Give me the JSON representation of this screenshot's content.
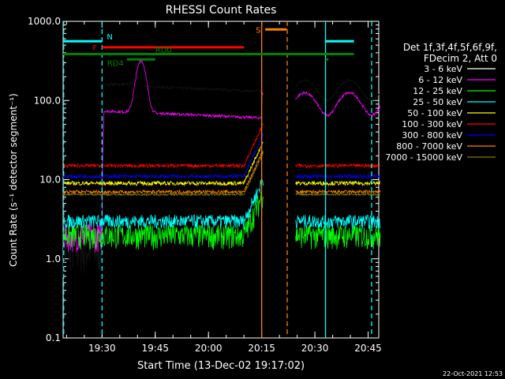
{
  "chart_data": {
    "type": "line",
    "title": "RHESSI Count Rates",
    "xlabel": "Start Time (13-Dec-02 19:17:02)",
    "ylabel": "Count Rate (s⁻¹ detector segment⁻¹)",
    "y_scale": "log",
    "ylim": [
      0.1,
      1000
    ],
    "xlim_minutes": [
      19.03,
      58.0
    ],
    "x_ticks": [
      {
        "label": "19:30",
        "m": 30
      },
      {
        "label": "19:45",
        "m": 45
      },
      {
        "label": "20:00",
        "m": 60
      },
      {
        "label": "20:15",
        "m": 75
      },
      {
        "label": "20:30",
        "m": 90
      },
      {
        "label": "20:45",
        "m": 105
      }
    ],
    "y_ticks": [
      {
        "label": "0.1",
        "v": 0.1
      },
      {
        "label": "1.0",
        "v": 1
      },
      {
        "label": "10.0",
        "v": 10
      },
      {
        "label": "100.0",
        "v": 100
      },
      {
        "label": "1000.0",
        "v": 1000
      }
    ],
    "legend_header": [
      "Det 1f,3f,4f,5f,6f,9f,",
      "FDecim 2, Att 0"
    ],
    "legend_placement": "right",
    "series": [
      {
        "name": "3 - 6 keV",
        "color": "#000000",
        "base": 1.3,
        "noise": 0.55
      },
      {
        "name": "6 - 12 keV",
        "color": "#ff00ff",
        "base": 2.0,
        "noise": 0.4
      },
      {
        "name": "12 - 25 keV",
        "color": "#00ff00",
        "base": 2.0,
        "noise": 0.35
      },
      {
        "name": "25 - 50 keV",
        "color": "#00ffff",
        "base": 3.0,
        "noise": 0.2
      },
      {
        "name": "50 - 100 keV",
        "color": "#ffff00",
        "base": 9.0,
        "noise": 0.06
      },
      {
        "name": "100 - 300 keV",
        "color": "#ff0000",
        "base": 15.0,
        "noise": 0.05
      },
      {
        "name": "300 - 800 keV",
        "color": "#0000ff",
        "base": 11.0,
        "noise": 0.05
      },
      {
        "name": "800 - 7000 keV",
        "color": "#ff8000",
        "base": 7.0,
        "noise": 0.05
      },
      {
        "name": "7000 - 15000 keV",
        "color": "#808000",
        "base": 6.5,
        "noise": 0.03
      }
    ],
    "flags": [
      {
        "label": "N",
        "color": "#00ffff",
        "segments": [
          [
            19.03,
            30.0
          ],
          [
            93.0,
            101.0
          ]
        ],
        "level": 560
      },
      {
        "label": "F",
        "color": "#ff0000",
        "segments": [
          [
            30.0,
            70.0
          ]
        ],
        "level": 470
      },
      {
        "label": "S",
        "color": "#ff8000",
        "segments": [
          [
            76.0,
            82.0
          ]
        ],
        "level": 790
      },
      {
        "label": "RD0",
        "color": "#008000",
        "segments": [
          [
            19.03,
            101.0
          ]
        ],
        "level": 385
      },
      {
        "label": "RD4",
        "color": "#008000",
        "segments": [
          [
            37.0,
            45.0
          ],
          [
            93.0,
            93.8
          ]
        ],
        "level": 330
      }
    ],
    "vertical_markers": [
      {
        "m": 19.2,
        "color": "#00ffff",
        "style": "dashed"
      },
      {
        "m": 30.0,
        "color": "#00ffff",
        "style": "dashed"
      },
      {
        "m": 75.0,
        "color": "#ff8000",
        "style": "solid"
      },
      {
        "m": 82.2,
        "color": "#ff8000",
        "style": "dashed"
      },
      {
        "m": 93.0,
        "color": "#00ffff",
        "style": "solid"
      },
      {
        "m": 106.0,
        "color": "#00ffff",
        "style": "dashed"
      }
    ],
    "timestamp": "22-Oct-2021 12:53"
  }
}
